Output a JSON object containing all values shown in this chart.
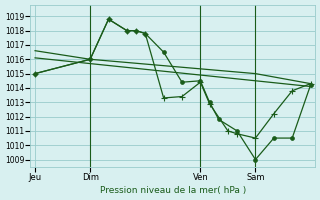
{
  "background_color": "#d8f0f0",
  "grid_color": "#99cccc",
  "line_color": "#1a5c1a",
  "title": "Pression niveau de la mer( hPa )",
  "x_ticks_labels": [
    "Jeu",
    "Dim",
    "Ven",
    "Sam"
  ],
  "x_ticks_pos": [
    0,
    24,
    72,
    96
  ],
  "xlim": [
    -2,
    122
  ],
  "ylim": [
    1008.5,
    1019.8
  ],
  "yticks": [
    1009,
    1010,
    1011,
    1012,
    1013,
    1014,
    1015,
    1016,
    1017,
    1018,
    1019
  ],
  "vlines": [
    24,
    72,
    96
  ],
  "line1": {
    "x": [
      0,
      24,
      96,
      120
    ],
    "y": [
      1016.6,
      1016.0,
      1015.0,
      1014.3
    ]
  },
  "line2": {
    "x": [
      0,
      24,
      96,
      120
    ],
    "y": [
      1016.1,
      1015.7,
      1014.5,
      1014.1
    ]
  },
  "line3_circle": {
    "x": [
      0,
      24,
      32,
      40,
      44,
      48,
      56,
      64,
      72,
      76,
      80,
      88,
      96,
      104,
      112,
      120
    ],
    "y": [
      1015.0,
      1016.0,
      1018.8,
      1018.0,
      1018.0,
      1017.8,
      1016.5,
      1014.4,
      1014.5,
      1013.0,
      1011.8,
      1011.0,
      1009.0,
      1010.5,
      1010.5,
      1014.2
    ]
  },
  "line4_plus": {
    "x": [
      0,
      24,
      32,
      40,
      44,
      48,
      56,
      64,
      72,
      76,
      84,
      88,
      96,
      104,
      112,
      120
    ],
    "y": [
      1015.0,
      1016.0,
      1018.8,
      1018.0,
      1018.0,
      1017.8,
      1013.3,
      1013.4,
      1014.4,
      1012.9,
      1011.0,
      1010.8,
      1010.5,
      1012.2,
      1013.8,
      1014.3
    ]
  }
}
